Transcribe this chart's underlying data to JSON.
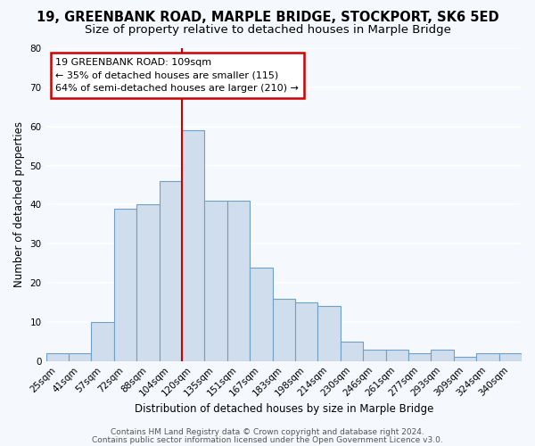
{
  "title": "19, GREENBANK ROAD, MARPLE BRIDGE, STOCKPORT, SK6 5ED",
  "subtitle": "Size of property relative to detached houses in Marple Bridge",
  "xlabel": "Distribution of detached houses by size in Marple Bridge",
  "ylabel": "Number of detached properties",
  "bar_labels": [
    "25sqm",
    "41sqm",
    "57sqm",
    "72sqm",
    "88sqm",
    "104sqm",
    "120sqm",
    "135sqm",
    "151sqm",
    "167sqm",
    "183sqm",
    "198sqm",
    "214sqm",
    "230sqm",
    "246sqm",
    "261sqm",
    "277sqm",
    "293sqm",
    "309sqm",
    "324sqm",
    "340sqm"
  ],
  "bar_values": [
    2,
    2,
    10,
    39,
    40,
    46,
    59,
    41,
    41,
    24,
    16,
    15,
    14,
    5,
    3,
    3,
    2,
    3,
    1,
    2,
    2
  ],
  "bar_color": "#cfdded",
  "bar_edge_color": "#6ea0c8",
  "ylim": [
    0,
    80
  ],
  "yticks": [
    0,
    10,
    20,
    30,
    40,
    50,
    60,
    70,
    80
  ],
  "vline_color": "#cc0000",
  "vline_x": 5.5,
  "annotation_text": "19 GREENBANK ROAD: 109sqm\n← 35% of detached houses are smaller (115)\n64% of semi-detached houses are larger (210) →",
  "annotation_box_color": "#ffffff",
  "annotation_box_edge_color": "#cc0000",
  "footer_line1": "Contains HM Land Registry data © Crown copyright and database right 2024.",
  "footer_line2": "Contains public sector information licensed under the Open Government Licence v3.0.",
  "background_color": "#f5f8fc",
  "grid_color": "#d8e4f0",
  "title_fontsize": 10.5,
  "subtitle_fontsize": 9.5,
  "xlabel_fontsize": 8.5,
  "ylabel_fontsize": 8.5,
  "tick_fontsize": 7.5,
  "footer_fontsize": 6.5
}
